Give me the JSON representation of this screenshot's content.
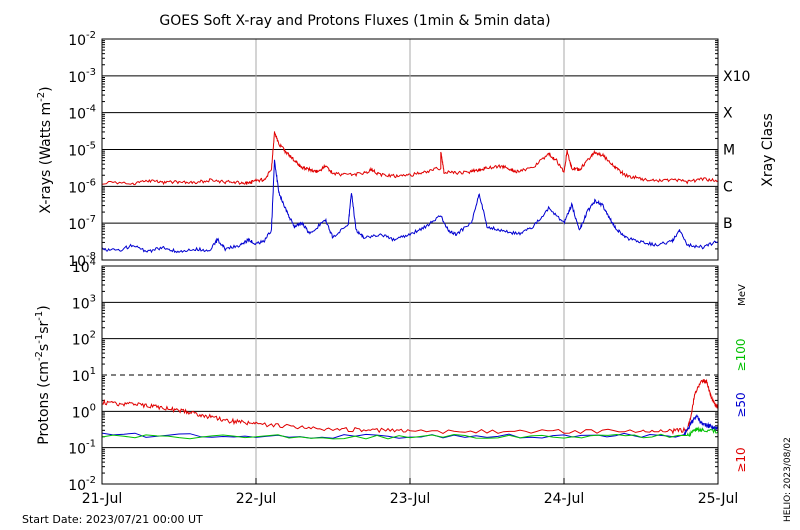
{
  "chart_data": [
    {
      "type": "line",
      "title": "GOES Soft X-ray and Protons Fluxes   (1min & 5min data)",
      "ylabel_prefix": "X-rays (Watts m",
      "ylabel_exp": "-2",
      "ylabel_suffix": ")",
      "yscale": "log",
      "ylim_exp": [
        -8,
        -2
      ],
      "yticks": [
        {
          "base": "10",
          "exp": "-2"
        },
        {
          "base": "10",
          "exp": "-3"
        },
        {
          "base": "10",
          "exp": "-4"
        },
        {
          "base": "10",
          "exp": "-5"
        },
        {
          "base": "10",
          "exp": "-6"
        },
        {
          "base": "10",
          "exp": "-7"
        },
        {
          "base": "10",
          "exp": "-8"
        }
      ],
      "right_axis_label": "Xray Class",
      "classes": [
        {
          "label": "X10",
          "exp": -3
        },
        {
          "label": "X",
          "exp": -4
        },
        {
          "label": "M",
          "exp": -5
        },
        {
          "label": "C",
          "exp": -6
        },
        {
          "label": "B",
          "exp": -7
        }
      ],
      "series": [
        {
          "color": "#e00000",
          "points": [
            [
              0,
              -5.9
            ],
            [
              0.2,
              -5.92
            ],
            [
              0.3,
              -5.85
            ],
            [
              0.4,
              -5.9
            ],
            [
              0.5,
              -5.88
            ],
            [
              0.6,
              -5.9
            ],
            [
              0.7,
              -5.83
            ],
            [
              0.8,
              -5.88
            ],
            [
              0.9,
              -5.9
            ],
            [
              0.95,
              -5.92
            ],
            [
              1.0,
              -5.85
            ],
            [
              1.05,
              -5.82
            ],
            [
              1.1,
              -5.55
            ],
            [
              1.12,
              -4.55
            ],
            [
              1.15,
              -4.85
            ],
            [
              1.2,
              -5.1
            ],
            [
              1.25,
              -5.3
            ],
            [
              1.3,
              -5.5
            ],
            [
              1.35,
              -5.55
            ],
            [
              1.4,
              -5.6
            ],
            [
              1.45,
              -5.45
            ],
            [
              1.5,
              -5.65
            ],
            [
              1.6,
              -5.7
            ],
            [
              1.7,
              -5.65
            ],
            [
              1.75,
              -5.55
            ],
            [
              1.8,
              -5.68
            ],
            [
              1.9,
              -5.72
            ],
            [
              2.0,
              -5.7
            ],
            [
              2.1,
              -5.6
            ],
            [
              2.2,
              -5.5
            ],
            [
              2.2,
              -5.05
            ],
            [
              2.22,
              -5.6
            ],
            [
              2.3,
              -5.65
            ],
            [
              2.4,
              -5.6
            ],
            [
              2.45,
              -5.55
            ],
            [
              2.5,
              -5.5
            ],
            [
              2.6,
              -5.45
            ],
            [
              2.65,
              -5.55
            ],
            [
              2.7,
              -5.6
            ],
            [
              2.8,
              -5.5
            ],
            [
              2.9,
              -5.1
            ],
            [
              2.95,
              -5.3
            ],
            [
              3.0,
              -5.6
            ],
            [
              3.02,
              -5.05
            ],
            [
              3.05,
              -5.5
            ],
            [
              3.1,
              -5.55
            ],
            [
              3.15,
              -5.3
            ],
            [
              3.2,
              -5.08
            ],
            [
              3.25,
              -5.15
            ],
            [
              3.3,
              -5.35
            ],
            [
              3.35,
              -5.55
            ],
            [
              3.4,
              -5.7
            ],
            [
              3.5,
              -5.8
            ],
            [
              3.6,
              -5.85
            ],
            [
              3.7,
              -5.82
            ],
            [
              3.8,
              -5.88
            ],
            [
              3.9,
              -5.8
            ],
            [
              4.0,
              -5.85
            ]
          ]
        },
        {
          "color": "#0000d0",
          "points": [
            [
              0,
              -7.7
            ],
            [
              0.1,
              -7.75
            ],
            [
              0.2,
              -7.6
            ],
            [
              0.3,
              -7.78
            ],
            [
              0.4,
              -7.65
            ],
            [
              0.5,
              -7.8
            ],
            [
              0.6,
              -7.7
            ],
            [
              0.7,
              -7.75
            ],
            [
              0.75,
              -7.45
            ],
            [
              0.8,
              -7.7
            ],
            [
              0.9,
              -7.6
            ],
            [
              0.95,
              -7.45
            ],
            [
              1.0,
              -7.55
            ],
            [
              1.05,
              -7.5
            ],
            [
              1.1,
              -7.2
            ],
            [
              1.12,
              -5.3
            ],
            [
              1.15,
              -6.2
            ],
            [
              1.2,
              -6.7
            ],
            [
              1.25,
              -7.1
            ],
            [
              1.3,
              -7.0
            ],
            [
              1.35,
              -7.3
            ],
            [
              1.45,
              -6.9
            ],
            [
              1.5,
              -7.4
            ],
            [
              1.6,
              -7.0
            ],
            [
              1.62,
              -6.15
            ],
            [
              1.65,
              -7.2
            ],
            [
              1.7,
              -7.4
            ],
            [
              1.8,
              -7.3
            ],
            [
              1.9,
              -7.45
            ],
            [
              2.0,
              -7.3
            ],
            [
              2.1,
              -7.1
            ],
            [
              2.2,
              -6.8
            ],
            [
              2.25,
              -7.2
            ],
            [
              2.3,
              -7.3
            ],
            [
              2.4,
              -7.0
            ],
            [
              2.45,
              -6.2
            ],
            [
              2.5,
              -7.1
            ],
            [
              2.6,
              -7.2
            ],
            [
              2.7,
              -7.3
            ],
            [
              2.8,
              -7.1
            ],
            [
              2.9,
              -6.6
            ],
            [
              3.0,
              -7.0
            ],
            [
              3.05,
              -6.5
            ],
            [
              3.1,
              -7.2
            ],
            [
              3.15,
              -6.7
            ],
            [
              3.2,
              -6.4
            ],
            [
              3.25,
              -6.5
            ],
            [
              3.3,
              -6.9
            ],
            [
              3.35,
              -7.2
            ],
            [
              3.4,
              -7.4
            ],
            [
              3.5,
              -7.5
            ],
            [
              3.6,
              -7.6
            ],
            [
              3.7,
              -7.5
            ],
            [
              3.75,
              -7.2
            ],
            [
              3.8,
              -7.6
            ],
            [
              3.9,
              -7.65
            ],
            [
              4.0,
              -7.5
            ]
          ]
        }
      ]
    },
    {
      "type": "line",
      "ylabel_prefix": "Protons (cm",
      "ylabel_e1": "-2",
      "ylabel_mid1": "s",
      "ylabel_e2": "-1",
      "ylabel_mid2": "sr",
      "ylabel_e3": "-1",
      "ylabel_suffix": ")",
      "yscale": "log",
      "ylim_exp": [
        -2,
        4
      ],
      "yticks": [
        {
          "base": "10",
          "exp": "4"
        },
        {
          "base": "10",
          "exp": "3"
        },
        {
          "base": "10",
          "exp": "2"
        },
        {
          "base": "10",
          "exp": "1"
        },
        {
          "base": "10",
          "exp": "0"
        },
        {
          "base": "10",
          "exp": "-1"
        },
        {
          "base": "10",
          "exp": "-2"
        }
      ],
      "dashed_level_exp": 1,
      "unit_label": "MeV",
      "energy_labels": [
        {
          "text": "≥100",
          "color": "#00c000"
        },
        {
          "text": "≥50",
          "color": "#0000d0"
        },
        {
          "text": "≥10",
          "color": "#e00000"
        }
      ],
      "series": [
        {
          "color": "#e00000",
          "points": [
            [
              0,
              0.25
            ],
            [
              0.1,
              0.2
            ],
            [
              0.2,
              0.22
            ],
            [
              0.3,
              0.15
            ],
            [
              0.4,
              0.1
            ],
            [
              0.5,
              0.02
            ],
            [
              0.6,
              -0.05
            ],
            [
              0.7,
              -0.15
            ],
            [
              0.8,
              -0.25
            ],
            [
              0.9,
              -0.3
            ],
            [
              1.0,
              -0.35
            ],
            [
              1.2,
              -0.42
            ],
            [
              1.4,
              -0.48
            ],
            [
              1.6,
              -0.5
            ],
            [
              1.8,
              -0.52
            ],
            [
              2.0,
              -0.55
            ],
            [
              2.5,
              -0.55
            ],
            [
              3.0,
              -0.55
            ],
            [
              3.5,
              -0.55
            ],
            [
              3.7,
              -0.55
            ],
            [
              3.8,
              -0.5
            ],
            [
              3.82,
              -0.2
            ],
            [
              3.85,
              0.5
            ],
            [
              3.9,
              0.85
            ],
            [
              3.93,
              0.78
            ],
            [
              3.95,
              0.45
            ],
            [
              3.98,
              0.2
            ],
            [
              4.0,
              0.1
            ]
          ]
        },
        {
          "color": "#0000d0",
          "points": [
            [
              0,
              -0.65
            ],
            [
              1.0,
              -0.68
            ],
            [
              2.0,
              -0.68
            ],
            [
              3.0,
              -0.68
            ],
            [
              3.78,
              -0.65
            ],
            [
              3.83,
              -0.3
            ],
            [
              3.86,
              -0.15
            ],
            [
              3.9,
              -0.35
            ],
            [
              3.95,
              -0.42
            ],
            [
              4.0,
              -0.45
            ]
          ]
        },
        {
          "color": "#00c000",
          "points": [
            [
              0,
              -0.7
            ],
            [
              1.0,
              -0.7
            ],
            [
              2.0,
              -0.7
            ],
            [
              3.0,
              -0.68
            ],
            [
              3.8,
              -0.68
            ],
            [
              3.85,
              -0.5
            ],
            [
              3.9,
              -0.52
            ],
            [
              4.0,
              -0.55
            ]
          ]
        }
      ]
    }
  ],
  "x_axis": {
    "ticks": [
      "21-Jul",
      "22-Jul",
      "23-Jul",
      "24-Jul",
      "25-Jul"
    ],
    "xlim": [
      0,
      4
    ]
  },
  "footer": {
    "start_date": "Start Date: 2023/07/21 00:00 UT",
    "credit": "HELIO: 2023/08/02"
  }
}
